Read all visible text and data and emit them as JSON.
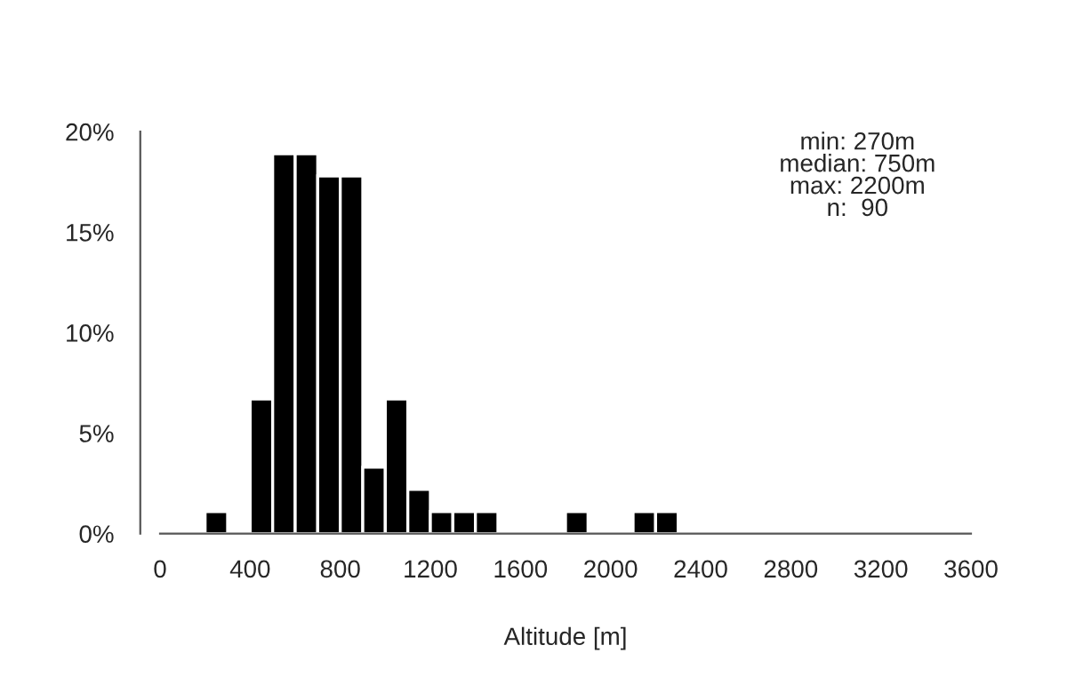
{
  "chart_data": {
    "type": "histogram",
    "xlabel": "Altitude [m]",
    "bins": [
      0,
      100,
      200,
      300,
      400,
      500,
      600,
      700,
      800,
      900,
      1000,
      1100,
      1200,
      1300,
      1400,
      1500,
      1600,
      1700,
      1800,
      1900,
      2000,
      2100,
      2200,
      2300,
      2400,
      2500,
      2600,
      2700,
      2800,
      2900,
      3000,
      3100,
      3200,
      3300,
      3400,
      3500,
      3600
    ],
    "values": [
      0,
      0,
      1.1,
      0,
      6.7,
      18.9,
      18.9,
      17.8,
      17.8,
      3.3,
      6.7,
      2.2,
      1.1,
      1.1,
      1.1,
      0,
      0,
      0,
      1.1,
      0,
      0,
      1.1,
      1.1,
      0,
      0,
      0,
      0,
      0,
      0,
      0,
      0,
      0,
      0,
      0,
      0,
      0
    ],
    "color": "#000000",
    "xlim": [
      0,
      3600
    ],
    "xticks": [
      0,
      400,
      800,
      1200,
      1600,
      2000,
      2400,
      2800,
      3200,
      3600
    ],
    "ylim": [
      0,
      20
    ],
    "yticks": [
      {
        "value": 0,
        "label": "0%"
      },
      {
        "value": 5,
        "label": "5%"
      },
      {
        "value": 10,
        "label": "10%"
      },
      {
        "value": 15,
        "label": "15%"
      },
      {
        "value": 20,
        "label": "20%"
      }
    ],
    "annotations": [
      "min: 270m\nmedian: 750m\nmax: 2200m\nn:  90"
    ],
    "grid": false,
    "legend": false
  }
}
